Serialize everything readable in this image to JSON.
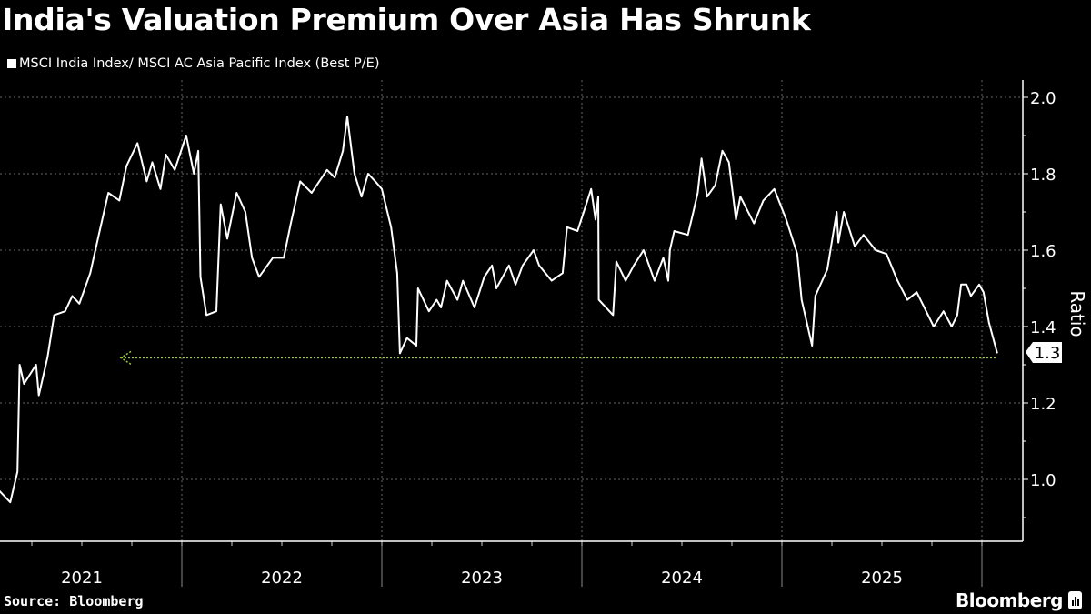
{
  "title": "India's Valuation Premium Over Asia Has Shrunk",
  "source": "Source: Bloomberg",
  "brand": "Bloomberg",
  "colors": {
    "background": "#000000",
    "line": "#ffffff",
    "reference_line": "#9acd32",
    "grid": "#555555"
  },
  "chart_data": {
    "type": "line",
    "title": "India's Valuation Premium Over Asia Has Shrunk",
    "ylabel": "Ratio",
    "xlabel": "",
    "ylim": [
      0.85,
      2.05
    ],
    "yticks": [
      "1.0",
      "1.2",
      "1.4",
      "1.6",
      "1.8",
      "2.0"
    ],
    "xticks": [
      "2021",
      "2022",
      "2023",
      "2024",
      "2025"
    ],
    "grid": true,
    "legend_position": "top-left",
    "last_value_label": "1.3",
    "reference_line": {
      "style": "dotted-arrow",
      "value": 1.33
    },
    "series": [
      {
        "name": "MSCI India Index/ MSCI AC Asia Pacific Index (Best P/E)",
        "points": [
          [
            "2021-02-02",
            0.97
          ],
          [
            "2021-02-22",
            0.94
          ],
          [
            "2021-03-07",
            1.02
          ],
          [
            "2021-03-11",
            1.3
          ],
          [
            "2021-03-19",
            1.25
          ],
          [
            "2021-04-10",
            1.3
          ],
          [
            "2021-04-15",
            1.22
          ],
          [
            "2021-05-01",
            1.32
          ],
          [
            "2021-05-13",
            1.43
          ],
          [
            "2021-06-02",
            1.44
          ],
          [
            "2021-06-15",
            1.48
          ],
          [
            "2021-06-28",
            1.46
          ],
          [
            "2021-07-18",
            1.54
          ],
          [
            "2021-08-04",
            1.65
          ],
          [
            "2021-08-20",
            1.75
          ],
          [
            "2021-09-09",
            1.73
          ],
          [
            "2021-09-22",
            1.82
          ],
          [
            "2021-10-12",
            1.88
          ],
          [
            "2021-10-29",
            1.78
          ],
          [
            "2021-11-08",
            1.83
          ],
          [
            "2021-11-23",
            1.76
          ],
          [
            "2021-12-03",
            1.85
          ],
          [
            "2021-12-19",
            1.81
          ],
          [
            "2022-01-09",
            1.9
          ],
          [
            "2022-01-23",
            1.8
          ],
          [
            "2022-01-31",
            1.86
          ],
          [
            "2022-02-04",
            1.53
          ],
          [
            "2022-02-15",
            1.43
          ],
          [
            "2022-03-05",
            1.44
          ],
          [
            "2022-03-13",
            1.72
          ],
          [
            "2022-03-25",
            1.63
          ],
          [
            "2022-04-11",
            1.75
          ],
          [
            "2022-04-27",
            1.7
          ],
          [
            "2022-05-09",
            1.58
          ],
          [
            "2022-05-22",
            1.53
          ],
          [
            "2022-06-16",
            1.58
          ],
          [
            "2022-07-06",
            1.58
          ],
          [
            "2022-07-19",
            1.67
          ],
          [
            "2022-08-05",
            1.78
          ],
          [
            "2022-08-26",
            1.75
          ],
          [
            "2022-09-23",
            1.81
          ],
          [
            "2022-10-07",
            1.79
          ],
          [
            "2022-10-22",
            1.86
          ],
          [
            "2022-10-30",
            1.95
          ],
          [
            "2022-11-12",
            1.8
          ],
          [
            "2022-11-25",
            1.74
          ],
          [
            "2022-12-07",
            1.8
          ],
          [
            "2022-12-20",
            1.78
          ],
          [
            "2023-01-01",
            1.76
          ],
          [
            "2023-01-18",
            1.66
          ],
          [
            "2023-01-29",
            1.54
          ],
          [
            "2023-02-03",
            1.33
          ],
          [
            "2023-02-16",
            1.37
          ],
          [
            "2023-03-05",
            1.35
          ],
          [
            "2023-03-08",
            1.5
          ],
          [
            "2023-03-28",
            1.44
          ],
          [
            "2023-04-11",
            1.47
          ],
          [
            "2023-04-19",
            1.45
          ],
          [
            "2023-04-30",
            1.52
          ],
          [
            "2023-05-19",
            1.47
          ],
          [
            "2023-05-29",
            1.52
          ],
          [
            "2023-06-19",
            1.45
          ],
          [
            "2023-07-07",
            1.53
          ],
          [
            "2023-07-21",
            1.56
          ],
          [
            "2023-07-29",
            1.5
          ],
          [
            "2023-08-21",
            1.56
          ],
          [
            "2023-09-02",
            1.51
          ],
          [
            "2023-09-15",
            1.56
          ],
          [
            "2023-10-05",
            1.6
          ],
          [
            "2023-10-15",
            1.56
          ],
          [
            "2023-11-07",
            1.52
          ],
          [
            "2023-11-27",
            1.54
          ],
          [
            "2023-12-05",
            1.66
          ],
          [
            "2023-12-24",
            1.65
          ],
          [
            "2024-01-09",
            1.72
          ],
          [
            "2024-01-18",
            1.76
          ],
          [
            "2024-01-26",
            1.68
          ],
          [
            "2024-01-31",
            1.74
          ],
          [
            "2024-02-01",
            1.47
          ],
          [
            "2024-02-27",
            1.43
          ],
          [
            "2024-03-04",
            1.57
          ],
          [
            "2024-03-21",
            1.52
          ],
          [
            "2024-04-05",
            1.56
          ],
          [
            "2024-04-23",
            1.6
          ],
          [
            "2024-05-13",
            1.52
          ],
          [
            "2024-05-29",
            1.58
          ],
          [
            "2024-06-07",
            1.52
          ],
          [
            "2024-06-10",
            1.6
          ],
          [
            "2024-06-18",
            1.65
          ],
          [
            "2024-07-13",
            1.64
          ],
          [
            "2024-07-23",
            1.7
          ],
          [
            "2024-07-31",
            1.75
          ],
          [
            "2024-08-07",
            1.84
          ],
          [
            "2024-08-17",
            1.74
          ],
          [
            "2024-09-01",
            1.77
          ],
          [
            "2024-09-14",
            1.86
          ],
          [
            "2024-09-26",
            1.83
          ],
          [
            "2024-10-09",
            1.68
          ],
          [
            "2024-10-17",
            1.74
          ],
          [
            "2024-11-11",
            1.67
          ],
          [
            "2024-11-28",
            1.73
          ],
          [
            "2024-12-18",
            1.76
          ],
          [
            "2025-01-09",
            1.68
          ],
          [
            "2025-01-29",
            1.59
          ],
          [
            "2025-02-06",
            1.47
          ],
          [
            "2025-02-25",
            1.35
          ],
          [
            "2025-03-03",
            1.48
          ],
          [
            "2025-03-25",
            1.55
          ],
          [
            "2025-04-11",
            1.7
          ],
          [
            "2025-04-14",
            1.62
          ],
          [
            "2025-04-24",
            1.7
          ],
          [
            "2025-05-14",
            1.61
          ],
          [
            "2025-05-30",
            1.64
          ],
          [
            "2025-06-21",
            1.6
          ],
          [
            "2025-07-11",
            1.59
          ],
          [
            "2025-07-31",
            1.52
          ],
          [
            "2025-08-18",
            1.47
          ],
          [
            "2025-09-04",
            1.49
          ],
          [
            "2025-10-05",
            1.4
          ],
          [
            "2025-10-23",
            1.44
          ],
          [
            "2025-11-07",
            1.4
          ],
          [
            "2025-11-17",
            1.43
          ],
          [
            "2025-11-24",
            1.51
          ],
          [
            "2025-12-04",
            1.51
          ],
          [
            "2025-12-12",
            1.48
          ],
          [
            "2025-12-27",
            1.51
          ],
          [
            "2026-01-04",
            1.49
          ],
          [
            "2026-01-14",
            1.41
          ],
          [
            "2026-01-29",
            1.33
          ]
        ]
      }
    ]
  }
}
